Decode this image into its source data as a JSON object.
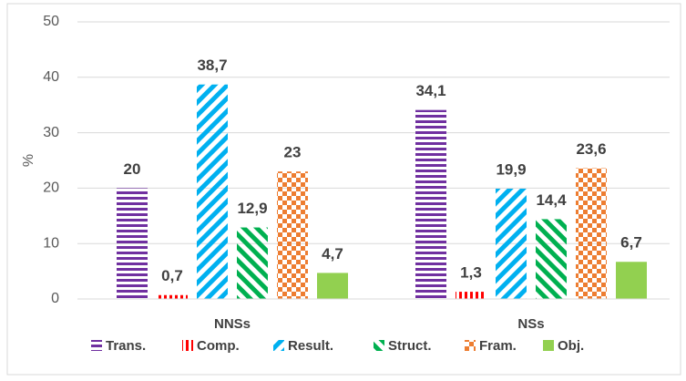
{
  "chart_data": {
    "type": "bar",
    "categories": [
      "NNSs",
      "NSs"
    ],
    "ylabel": "%",
    "ylim": [
      0,
      50
    ],
    "yticks": [
      0,
      10,
      20,
      30,
      40,
      50
    ],
    "grid": true,
    "legend": "bottom",
    "series": [
      {
        "name": "Trans.",
        "color": "#7030a0",
        "pattern": "horizontal",
        "values": [
          20,
          34.1
        ],
        "value_labels": [
          "20",
          "34,1"
        ]
      },
      {
        "name": "Comp.",
        "color": "#ff0000",
        "pattern": "vertical",
        "values": [
          0.7,
          1.3
        ],
        "value_labels": [
          "0,7",
          "1,3"
        ]
      },
      {
        "name": "Result.",
        "color": "#00b0f0",
        "pattern": "diagonal-down",
        "values": [
          38.7,
          19.9
        ],
        "value_labels": [
          "38,7",
          "19,9"
        ]
      },
      {
        "name": "Struct.",
        "color": "#00b050",
        "pattern": "diagonal-up",
        "values": [
          12.9,
          14.4
        ],
        "value_labels": [
          "12,9",
          "14,4"
        ]
      },
      {
        "name": "Fram.",
        "color": "#ed7d31",
        "pattern": "checker",
        "values": [
          23,
          23.6
        ],
        "value_labels": [
          "23",
          "23,6"
        ]
      },
      {
        "name": "Obj.",
        "color": "#92d050",
        "pattern": "solid",
        "values": [
          4.7,
          6.7
        ],
        "value_labels": [
          "4,7",
          "6,7"
        ]
      }
    ]
  }
}
